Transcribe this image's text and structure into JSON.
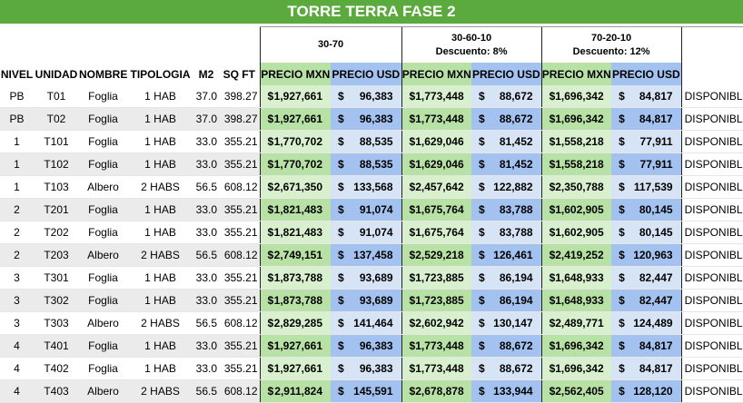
{
  "title": "TORRE TERRA FASE 2",
  "groups": [
    {
      "line1": "30-70",
      "line2": ""
    },
    {
      "line1": "30-60-10",
      "line2": "Descuento: 8%"
    },
    {
      "line1": "70-20-10",
      "line2": "Descuento: 12%"
    }
  ],
  "headers": {
    "nivel": "NIVEL",
    "unidad": "UNIDAD",
    "nombre": "NOMBRE",
    "tipologia": "TIPOLOGIA",
    "m2": "M2",
    "sqft": "SQ FT",
    "precio_mxn": "PRECIO MXN",
    "precio_usd": "PRECIO USD"
  },
  "currency_symbol": "$",
  "colors": {
    "title_bg": "#5aaa3d",
    "mxn": "#b7e1a5",
    "usd": "#a3c2f0"
  },
  "rows": [
    {
      "nivel": "PB",
      "unidad": "T01",
      "nombre": "Foglia",
      "tipologia": "1 HAB",
      "m2": "37.0",
      "sqft": "398.27",
      "prices": [
        "1,927,661",
        "96,383",
        "1,773,448",
        "88,672",
        "1,696,342",
        "84,817"
      ],
      "estado": "DISPONIBLE"
    },
    {
      "nivel": "PB",
      "unidad": "T02",
      "nombre": "Foglia",
      "tipologia": "1 HAB",
      "m2": "37.0",
      "sqft": "398.27",
      "prices": [
        "1,927,661",
        "96,383",
        "1,773,448",
        "88,672",
        "1,696,342",
        "84,817"
      ],
      "estado": "DISPONIBLE"
    },
    {
      "nivel": "1",
      "unidad": "T101",
      "nombre": "Foglia",
      "tipologia": "1 HAB",
      "m2": "33.0",
      "sqft": "355.21",
      "prices": [
        "1,770,702",
        "88,535",
        "1,629,046",
        "81,452",
        "1,558,218",
        "77,911"
      ],
      "estado": "DISPONIBLE"
    },
    {
      "nivel": "1",
      "unidad": "T102",
      "nombre": "Foglia",
      "tipologia": "1 HAB",
      "m2": "33.0",
      "sqft": "355.21",
      "prices": [
        "1,770,702",
        "88,535",
        "1,629,046",
        "81,452",
        "1,558,218",
        "77,911"
      ],
      "estado": "DISPONIBLE"
    },
    {
      "nivel": "1",
      "unidad": "T103",
      "nombre": "Albero",
      "tipologia": "2 HABS",
      "m2": "56.5",
      "sqft": "608.12",
      "prices": [
        "2,671,350",
        "133,568",
        "2,457,642",
        "122,882",
        "2,350,788",
        "117,539"
      ],
      "estado": "DISPONIBLE"
    },
    {
      "nivel": "2",
      "unidad": "T201",
      "nombre": "Foglia",
      "tipologia": "1 HAB",
      "m2": "33.0",
      "sqft": "355.21",
      "prices": [
        "1,821,483",
        "91,074",
        "1,675,764",
        "83,788",
        "1,602,905",
        "80,145"
      ],
      "estado": "DISPONIBLE"
    },
    {
      "nivel": "2",
      "unidad": "T202",
      "nombre": "Foglia",
      "tipologia": "1 HAB",
      "m2": "33.0",
      "sqft": "355.21",
      "prices": [
        "1,821,483",
        "91,074",
        "1,675,764",
        "83,788",
        "1,602,905",
        "80,145"
      ],
      "estado": "DISPONIBLE"
    },
    {
      "nivel": "2",
      "unidad": "T203",
      "nombre": "Albero",
      "tipologia": "2 HABS",
      "m2": "56.5",
      "sqft": "608.12",
      "prices": [
        "2,749,151",
        "137,458",
        "2,529,218",
        "126,461",
        "2,419,252",
        "120,963"
      ],
      "estado": "DISPONIBLE"
    },
    {
      "nivel": "3",
      "unidad": "T301",
      "nombre": "Foglia",
      "tipologia": "1 HAB",
      "m2": "33.0",
      "sqft": "355.21",
      "prices": [
        "1,873,788",
        "93,689",
        "1,723,885",
        "86,194",
        "1,648,933",
        "82,447"
      ],
      "estado": "DISPONIBLE"
    },
    {
      "nivel": "3",
      "unidad": "T302",
      "nombre": "Foglia",
      "tipologia": "1 HAB",
      "m2": "33.0",
      "sqft": "355.21",
      "prices": [
        "1,873,788",
        "93,689",
        "1,723,885",
        "86,194",
        "1,648,933",
        "82,447"
      ],
      "estado": "DISPONIBLE"
    },
    {
      "nivel": "3",
      "unidad": "T303",
      "nombre": "Albero",
      "tipologia": "2 HABS",
      "m2": "56.5",
      "sqft": "608.12",
      "prices": [
        "2,829,285",
        "141,464",
        "2,602,942",
        "130,147",
        "2,489,771",
        "124,489"
      ],
      "estado": "DISPONIBLE"
    },
    {
      "nivel": "4",
      "unidad": "T401",
      "nombre": "Foglia",
      "tipologia": "1 HAB",
      "m2": "33.0",
      "sqft": "355.21",
      "prices": [
        "1,927,661",
        "96,383",
        "1,773,448",
        "88,672",
        "1,696,342",
        "84,817"
      ],
      "estado": "DISPONIBLE"
    },
    {
      "nivel": "4",
      "unidad": "T402",
      "nombre": "Foglia",
      "tipologia": "1 HAB",
      "m2": "33.0",
      "sqft": "355.21",
      "prices": [
        "1,927,661",
        "96,383",
        "1,773,448",
        "88,672",
        "1,696,342",
        "84,817"
      ],
      "estado": "DISPONIBLE"
    },
    {
      "nivel": "4",
      "unidad": "T403",
      "nombre": "Albero",
      "tipologia": "2 HABS",
      "m2": "56.5",
      "sqft": "608.12",
      "prices": [
        "2,911,824",
        "145,591",
        "2,678,878",
        "133,944",
        "2,562,405",
        "128,120"
      ],
      "estado": "DISPONIBLE"
    }
  ]
}
